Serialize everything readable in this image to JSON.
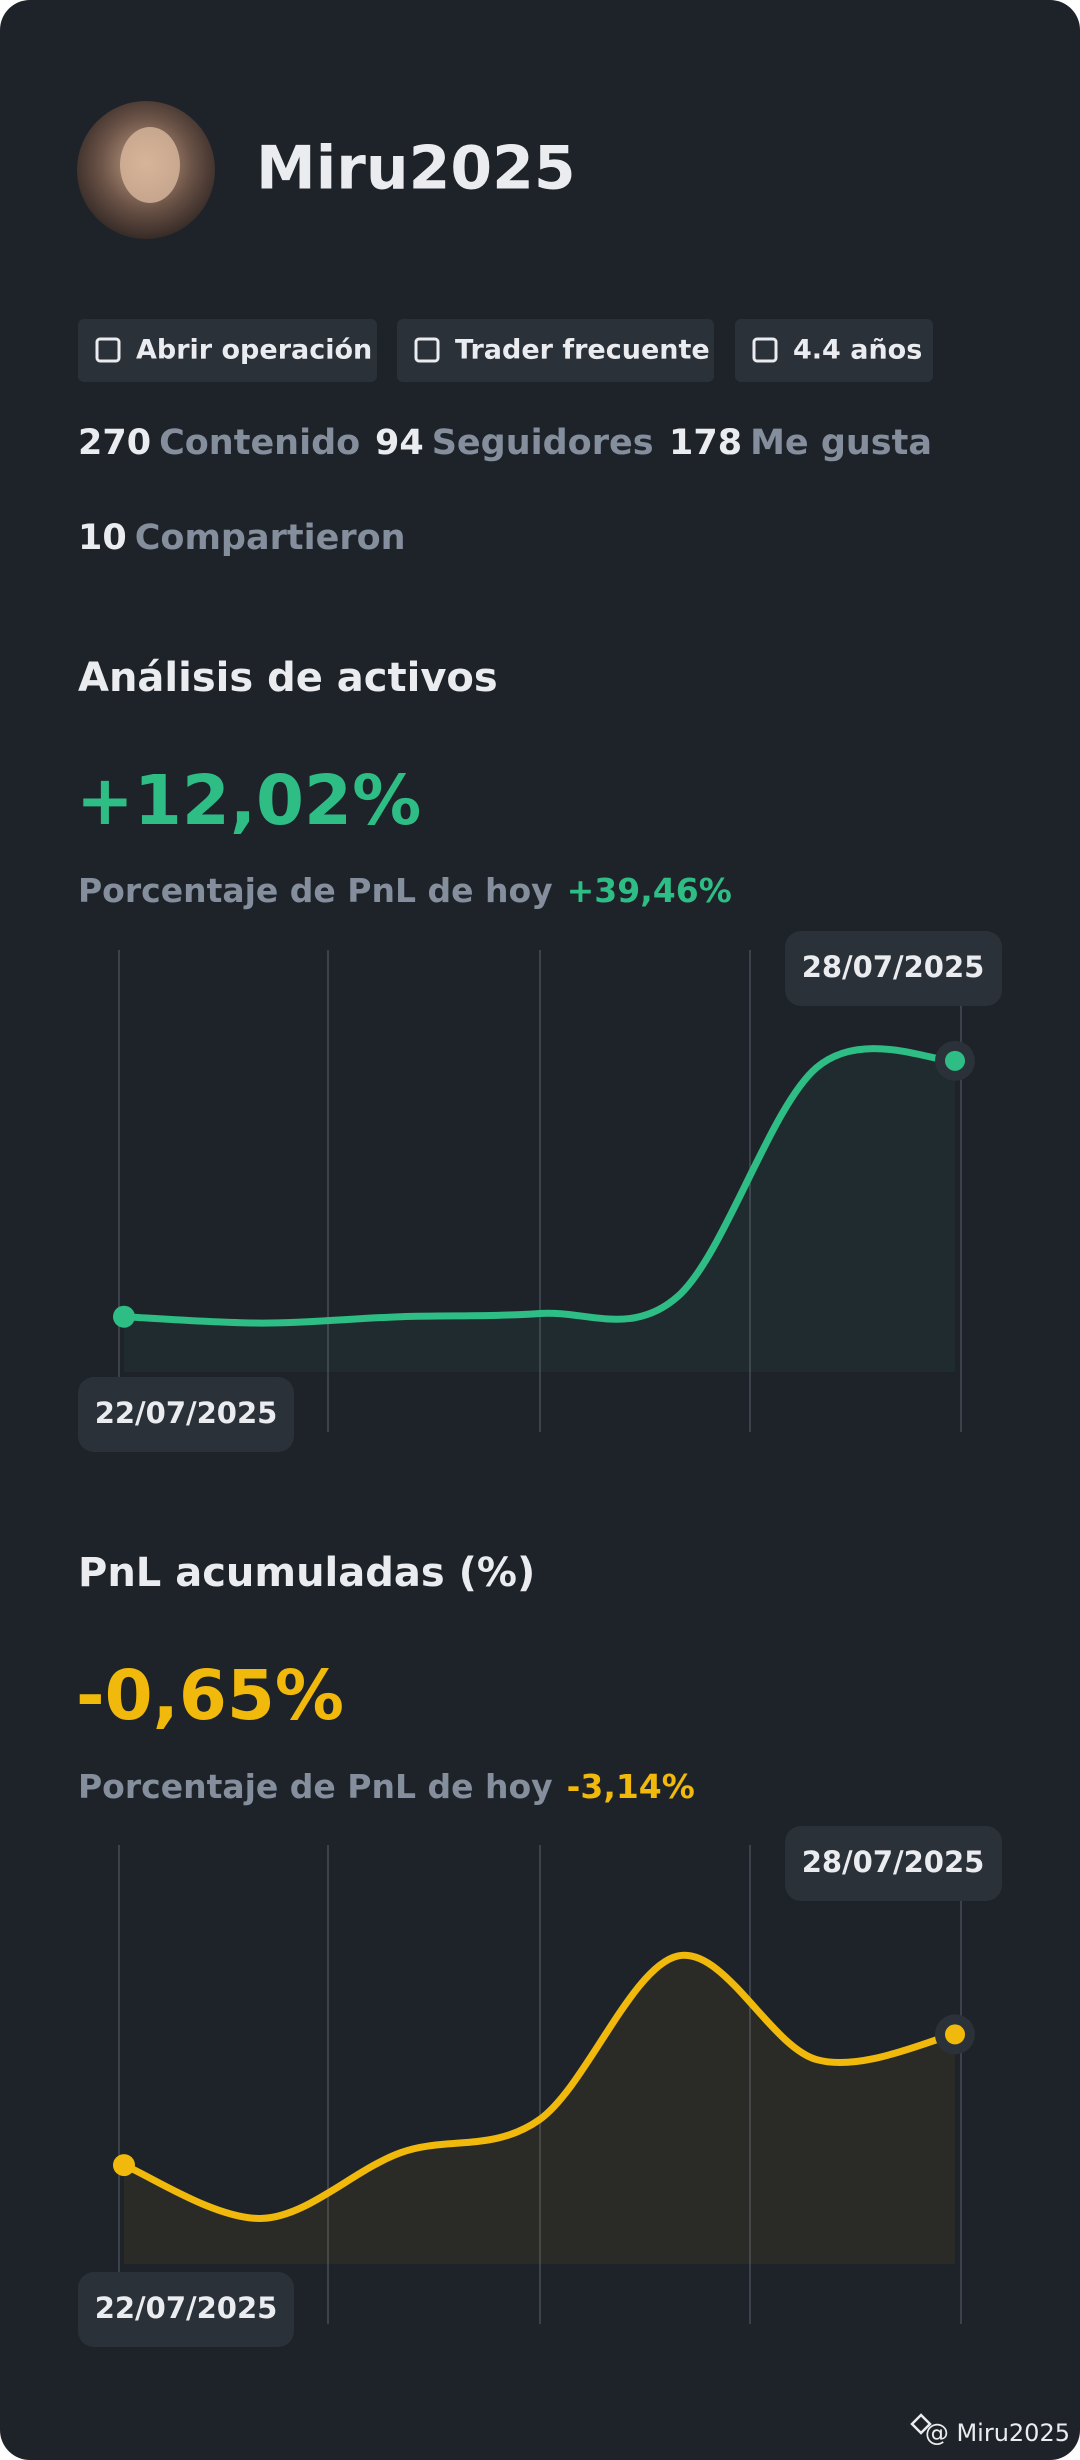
{
  "profile": {
    "name": "Miru2025",
    "badges": [
      "Abrir operación",
      "Trader frecuente",
      "4.4 años"
    ],
    "stats": [
      {
        "value": 270,
        "label": "Contenido"
      },
      {
        "value": 94,
        "label": "Seguidores"
      },
      {
        "value": 178,
        "label": "Me gusta"
      },
      {
        "value": 10,
        "label": "Compartieron"
      }
    ]
  },
  "chart_data": [
    {
      "type": "line",
      "title": "Análisis de activos",
      "headline": "+12,02%",
      "subtitle": "Porcentaje de PnL de hoy",
      "subtitle_value": "+39,46%",
      "x": [
        "22/07/2025",
        null,
        null,
        null,
        null,
        null,
        "28/07/2025"
      ],
      "series": [
        {
          "color": "#2ebd85",
          "values": [
            0,
            -0.3,
            0,
            0.15,
            0.96,
            11.7,
            12.02
          ]
        }
      ],
      "ylim": [
        -1,
        13
      ]
    },
    {
      "type": "line",
      "title": "PnL acumuladas (%)",
      "headline": "-0,65%",
      "subtitle": "Porcentaje de PnL de hoy",
      "subtitle_value": "-3,14%",
      "x": [
        "22/07/2025",
        null,
        null,
        null,
        null,
        null,
        "28/07/2025"
      ],
      "series": [
        {
          "color": "#f0b90b",
          "values": [
            -2.0,
            -2.55,
            -1.87,
            -1.53,
            0.16,
            -0.91,
            -0.65
          ]
        }
      ],
      "ylim": [
        -3,
        0.5
      ]
    }
  ],
  "footer": "@ Miru2025"
}
